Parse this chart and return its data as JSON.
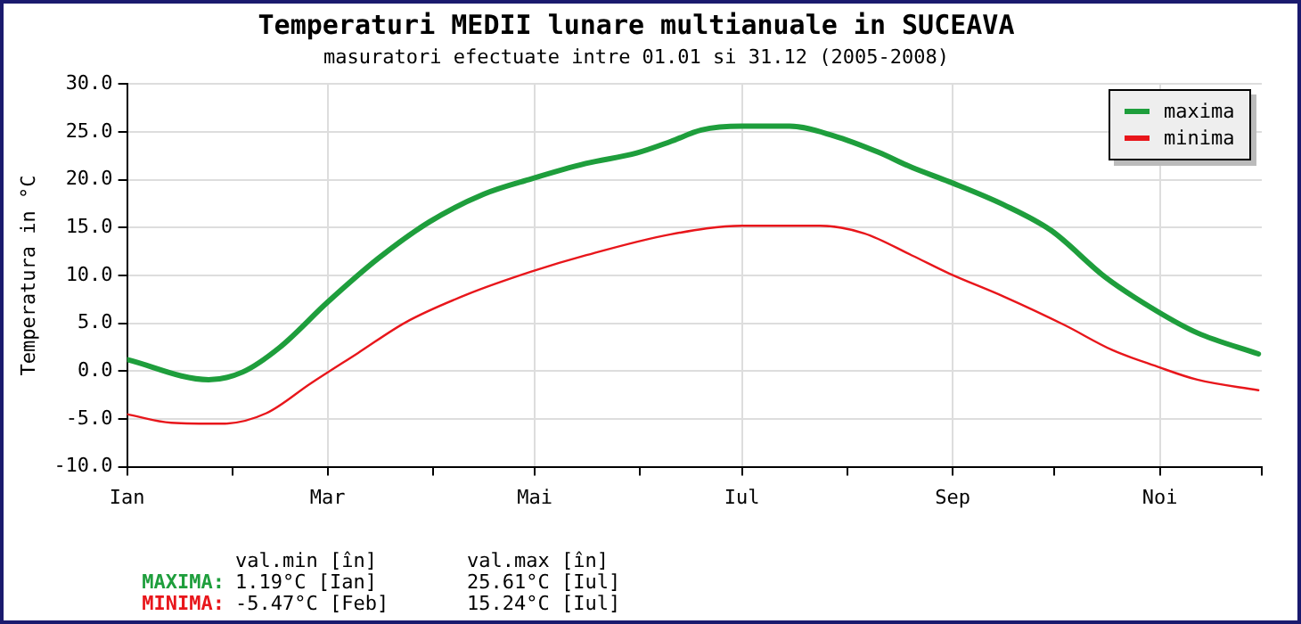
{
  "chart_data": {
    "type": "line",
    "title": "Temperaturi MEDII lunare multianuale in SUCEAVA",
    "subtitle": "masuratori efectuate intre 01.01 si 31.12 (2005-2008)",
    "ylabel": "Temperatura in °C",
    "xlim": [
      "--01-01",
      "--12-01"
    ],
    "xticks": [
      {
        "value": "--01-01",
        "label": "Ian"
      },
      {
        "value": "--02-01",
        "label": null
      },
      {
        "value": "--03-01",
        "label": "Mar"
      },
      {
        "value": "--04-01",
        "label": null
      },
      {
        "value": "--05-01",
        "label": "Mai"
      },
      {
        "value": "--06-01",
        "label": null
      },
      {
        "value": "--07-01",
        "label": "Iul"
      },
      {
        "value": "--08-01",
        "label": null
      },
      {
        "value": "--09-01",
        "label": "Sep"
      },
      {
        "value": "--10-01",
        "label": null
      },
      {
        "value": "--11-01",
        "label": "Noi"
      },
      {
        "value": "--12-01",
        "label": null
      }
    ],
    "ylim": [
      -10,
      30
    ],
    "yticks": [
      {
        "value": -10,
        "label": "-10.0"
      },
      {
        "value": -5,
        "label": "-5.0"
      },
      {
        "value": 0,
        "label": "0.0"
      },
      {
        "value": 5,
        "label": "5.0"
      },
      {
        "value": 10,
        "label": "10.0"
      },
      {
        "value": 15,
        "label": "15.0"
      },
      {
        "value": 20,
        "label": "20.0"
      },
      {
        "value": 25,
        "label": "25.0"
      },
      {
        "value": 30,
        "label": "30.0"
      }
    ],
    "grid": true,
    "legend": "top right",
    "marker": "none",
    "series": [
      {
        "name": "maxima",
        "color": "#1e9e3c",
        "x": [
          "--01-01",
          "--01-25",
          "--02-04",
          "--02-15",
          "--03-01",
          "--03-16",
          "--03-31",
          "--04-16",
          "--04-30",
          "--05-16",
          "--05-31",
          "--06-10",
          "--06-19",
          "--07-01",
          "--07-15",
          "--07-28",
          "--08-10",
          "--08-20",
          "--08-31",
          "--09-16",
          "--09-30",
          "--10-16",
          "--10-31",
          "--11-12",
          "--11-30"
        ],
        "values": [
          1.2,
          -0.9,
          -0.1,
          2.5,
          7.2,
          11.8,
          15.6,
          18.5,
          20.1,
          21.7,
          22.8,
          24.0,
          25.2,
          25.6,
          25.6,
          24.6,
          22.9,
          21.3,
          19.8,
          17.4,
          14.7,
          9.8,
          6.3,
          4.0,
          1.8
        ]
      },
      {
        "name": "minima",
        "color": "#e8161b",
        "x": [
          "--01-01",
          "--01-14",
          "--01-29",
          "--02-11",
          "--02-24",
          "--03-10",
          "--03-24",
          "--04-11",
          "--04-30",
          "--05-16",
          "--06-10",
          "--07-01",
          "--07-24",
          "--08-06",
          "--08-20",
          "--08-31",
          "--09-16",
          "--10-04",
          "--10-18",
          "--10-31",
          "--11-12",
          "--11-30"
        ],
        "values": [
          -4.5,
          -5.4,
          -5.5,
          -4.4,
          -1.3,
          1.9,
          5.1,
          8.0,
          10.4,
          12.1,
          14.3,
          15.2,
          15.2,
          14.4,
          12.1,
          10.2,
          7.8,
          4.8,
          2.2,
          0.5,
          -0.9,
          -2.0
        ]
      }
    ],
    "annotations": [
      "val.min [în]",
      "val.max [în]",
      "MAXIMA:",
      "1.19°C [Ian]",
      "25.61°C [Iul]",
      "MINIMA:",
      "-5.47°C [Feb]",
      "15.24°C [Iul]"
    ]
  }
}
